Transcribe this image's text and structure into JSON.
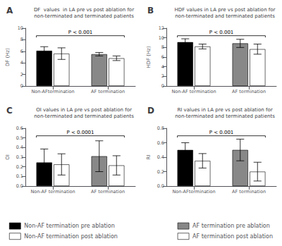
{
  "chart_data": [
    {
      "type": "bar",
      "label": "A",
      "title": "DF  values  in LA pre vs post ablation for\nnon-terminated and terminated patients",
      "ylabel": "DF (Hz)",
      "annotation": "P < 0.001",
      "categories": [
        "Non-AFtermination",
        "AF termination"
      ],
      "series": [
        {
          "name": "Non-AF termination pre ablation",
          "color": "black",
          "values": [
            6.1,
            null
          ],
          "errors": [
            0.7,
            null
          ]
        },
        {
          "name": "Non-AF termination post ablation",
          "color": "white",
          "values": [
            5.6,
            null
          ],
          "errors": [
            1.0,
            null
          ]
        },
        {
          "name": "AF termination pre ablation",
          "color": "#888888",
          "values": [
            null,
            5.5
          ],
          "errors": [
            null,
            0.3
          ]
        },
        {
          "name": "AF termination post ablation",
          "color": "white",
          "values": [
            null,
            4.8
          ],
          "errors": [
            null,
            0.4
          ]
        }
      ],
      "ylim": [
        0,
        10
      ],
      "yticks": [
        0,
        2,
        4,
        6,
        8,
        10
      ],
      "grid": false,
      "legend": "bottom"
    },
    {
      "type": "bar",
      "label": "B",
      "title": "HDF values in LA pre vs post ablation for\nnon-terminated and terminated patients",
      "ylabel": "HDF (Hz)",
      "annotation": "P < 0.001",
      "categories": [
        "Non-AF termination",
        "AF termination"
      ],
      "series": [
        {
          "name": "Non-AF termination pre ablation",
          "color": "black",
          "values": [
            9.1,
            null
          ],
          "errors": [
            0.7,
            null
          ]
        },
        {
          "name": "Non-AF termination post ablation",
          "color": "white",
          "values": [
            8.2,
            null
          ],
          "errors": [
            0.5,
            null
          ]
        },
        {
          "name": "AF termination pre ablation",
          "color": "#888888",
          "values": [
            null,
            8.85
          ],
          "errors": [
            null,
            0.85
          ]
        },
        {
          "name": "AF termination post ablation",
          "color": "white",
          "values": [
            null,
            7.65
          ],
          "errors": [
            null,
            1.05
          ]
        }
      ],
      "ylim": [
        0,
        12
      ],
      "yticks": [
        0,
        2,
        4,
        6,
        8,
        10,
        12
      ],
      "grid": false,
      "legend": "bottom"
    },
    {
      "type": "bar",
      "label": "C",
      "title": "OI values in LA pre vs post ablation for\nnon-terminated and terminated patients",
      "ylabel": "OI",
      "annotation": "P < 0.0001",
      "categories": [
        "Non-AF termination",
        "AF termination"
      ],
      "series": [
        {
          "name": "Non-AF termination pre ablation",
          "color": "black",
          "values": [
            0.245,
            null
          ],
          "errors": [
            0.14,
            null
          ]
        },
        {
          "name": "Non-AF termination post ablation",
          "color": "white",
          "values": [
            0.225,
            null
          ],
          "errors": [
            0.11,
            null
          ]
        },
        {
          "name": "AF termination pre ablation",
          "color": "#888888",
          "values": [
            null,
            0.31
          ],
          "errors": [
            null,
            0.16
          ]
        },
        {
          "name": "AF termination post ablation",
          "color": "white",
          "values": [
            null,
            0.215
          ],
          "errors": [
            null,
            0.1
          ]
        }
      ],
      "ylim": [
        0.0,
        0.6
      ],
      "yticks": [
        {
          "value": 0.0,
          "label": "0.0"
        },
        0.1,
        0.2,
        0.3,
        0.4,
        0.5,
        0.6
      ],
      "grid": false,
      "legend": "bottom"
    },
    {
      "type": "bar",
      "label": "D",
      "title": "RI values in LA pre vs post ablation for\nnon-terminated and terminated patients",
      "ylabel": "RI",
      "annotation": "P < 0.001",
      "categories": [
        "Non-AFtermination",
        "AF termination"
      ],
      "series": [
        {
          "name": "Non-AF termination pre ablation",
          "color": "black",
          "values": [
            0.5,
            null
          ],
          "errors": [
            0.1,
            null
          ]
        },
        {
          "name": "Non-AF termination post ablation",
          "color": "white",
          "values": [
            0.35,
            null
          ],
          "errors": [
            0.1,
            null
          ]
        },
        {
          "name": "AF termination pre ablation",
          "color": "#888888",
          "values": [
            null,
            0.5
          ],
          "errors": [
            null,
            0.15
          ]
        },
        {
          "name": "AF termination post ablation",
          "color": "white",
          "values": [
            null,
            0.2
          ],
          "errors": [
            null,
            0.13
          ]
        }
      ],
      "ylim": [
        0.0,
        0.8
      ],
      "yticks": [
        {
          "value": 0.0,
          "label": "0.0"
        },
        0.2,
        0.4,
        0.6,
        0.8
      ],
      "grid": false,
      "legend": "bottom"
    }
  ]
}
